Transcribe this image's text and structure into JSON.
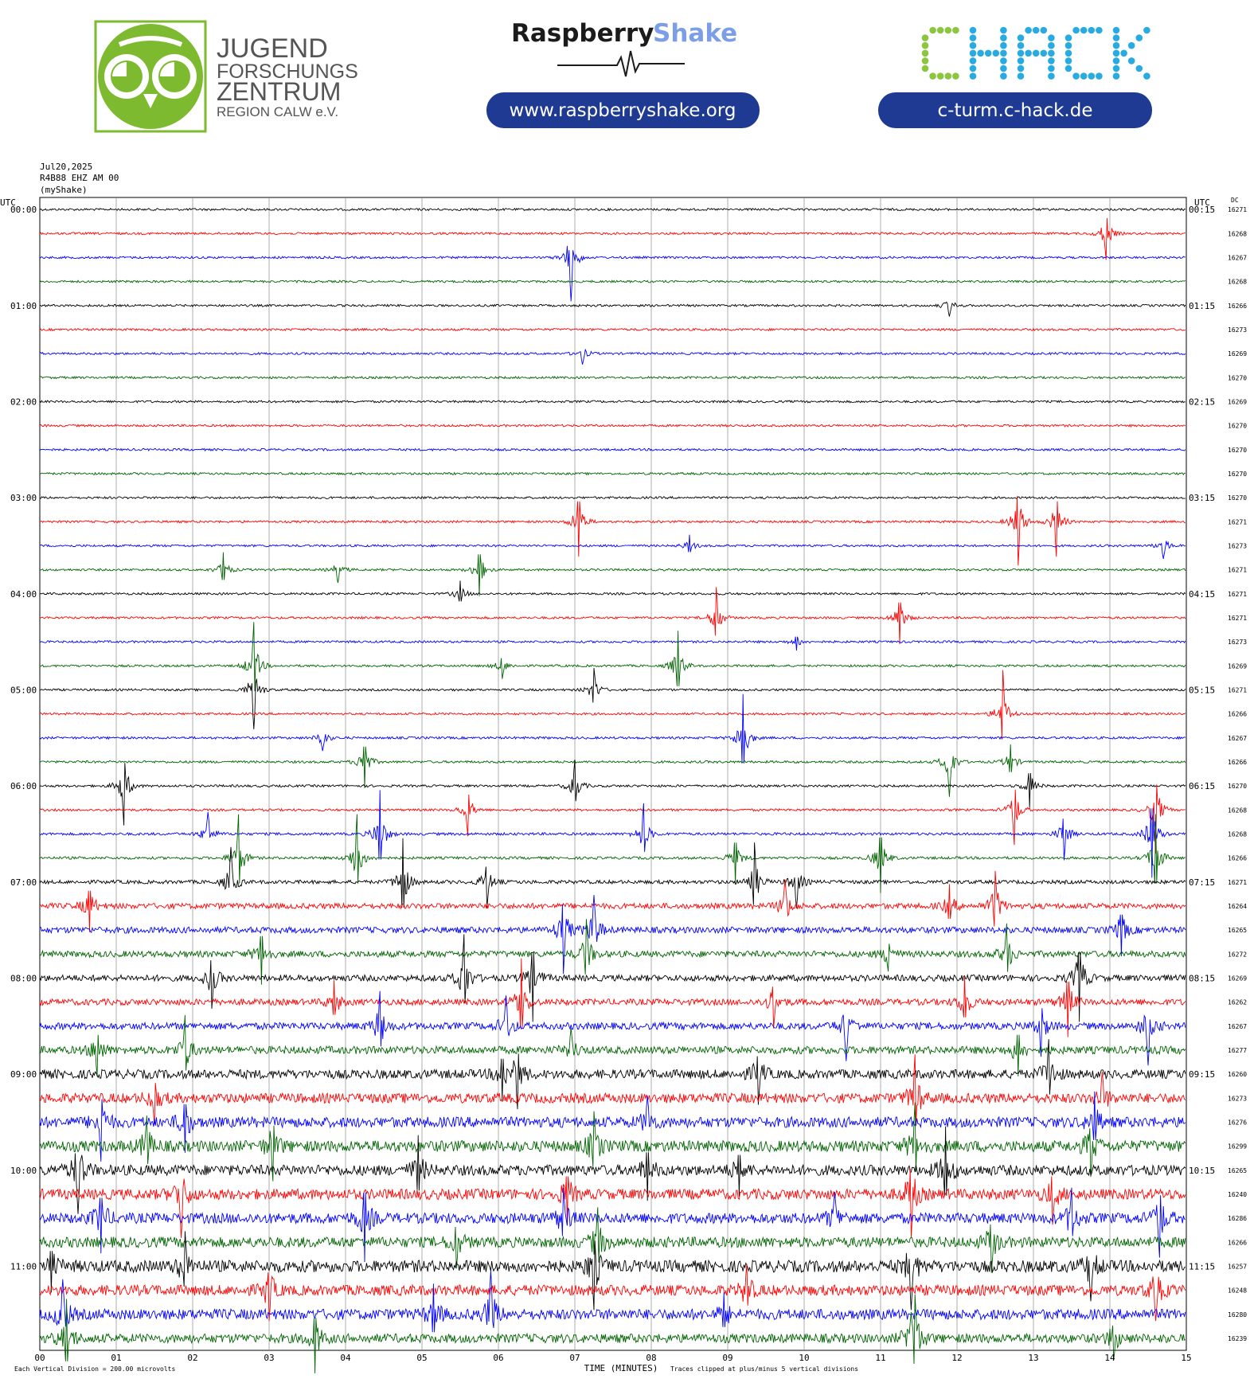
{
  "header": {
    "jfz": {
      "line1": "JUGEND",
      "line2": "FORSCHUNGS",
      "line3": "ZENTRUM",
      "line4": "REGION CALW e.V."
    },
    "rs": {
      "word1": "Raspberry",
      "word2": "Shake",
      "url": "www.raspberryshake.org"
    },
    "chack": {
      "logo_text": "CHACK",
      "url": "c-turm.c-hack.de"
    },
    "colors": {
      "jfz_green": "#7dba2f",
      "navy": "#1f3a93",
      "shake_blue": "#7b9ee6",
      "chack_green": "#8cc63f",
      "chack_blue": "#29abe2"
    }
  },
  "chart_data": {
    "type": "helicorder",
    "date": "Jul20,2025",
    "station": "R4B88 EHZ AM 00",
    "source": "(myShake)",
    "left_axis_label": "UTC",
    "right_axis_label": "UTC",
    "dc_label": "DC",
    "xlabel": "TIME (MINUTES)",
    "x_ticks": [
      "00",
      "01",
      "02",
      "03",
      "04",
      "05",
      "06",
      "07",
      "08",
      "09",
      "10",
      "11",
      "12",
      "13",
      "14",
      "15"
    ],
    "left_times": [
      "00:00",
      "01:00",
      "02:00",
      "03:00",
      "04:00",
      "05:00",
      "06:00",
      "07:00",
      "08:00",
      "09:00",
      "10:00",
      "11:00"
    ],
    "right_times": [
      "00:15",
      "01:15",
      "02:15",
      "03:15",
      "04:15",
      "05:15",
      "06:15",
      "07:15",
      "08:15",
      "09:15",
      "10:15",
      "11:15"
    ],
    "trace_colors": [
      "#000000",
      "#ff0000",
      "#0000ff",
      "#006400"
    ],
    "dc_values": [
      16271,
      16268,
      16267,
      16268,
      16266,
      16273,
      16269,
      16270,
      16269,
      16270,
      16270,
      16270,
      16270,
      16271,
      16273,
      16271,
      16271,
      16271,
      16273,
      16269,
      16271,
      16266,
      16267,
      16266,
      16270,
      16268,
      16268,
      16266,
      16271,
      16264,
      16265,
      16272,
      16269,
      16262,
      16267,
      16277,
      16260,
      16273,
      16276,
      16299,
      16265,
      16240,
      16286,
      16266,
      16257,
      16248,
      16280,
      16239
    ],
    "activity": [
      0.02,
      0.02,
      0.02,
      0.02,
      0.02,
      0.02,
      0.02,
      0.02,
      0.02,
      0.02,
      0.02,
      0.02,
      0.02,
      0.02,
      0.02,
      0.02,
      0.02,
      0.02,
      0.02,
      0.02,
      0.02,
      0.02,
      0.03,
      0.03,
      0.03,
      0.03,
      0.05,
      0.05,
      0.12,
      0.25,
      0.3,
      0.3,
      0.3,
      0.3,
      0.35,
      0.4,
      0.5,
      0.55,
      0.6,
      0.65,
      0.6,
      0.6,
      0.6,
      0.6,
      0.7,
      0.6,
      0.6,
      0.5
    ],
    "events": [
      [
        1,
        13.95,
        0.6
      ],
      [
        2,
        6.95,
        1.0
      ],
      [
        4,
        11.9,
        0.25
      ],
      [
        6,
        7.1,
        0.25
      ],
      [
        13,
        7.05,
        0.8
      ],
      [
        13,
        12.8,
        1.0
      ],
      [
        13,
        13.3,
        0.8
      ],
      [
        14,
        8.5,
        0.25
      ],
      [
        14,
        14.7,
        0.3
      ],
      [
        15,
        2.4,
        0.4
      ],
      [
        15,
        3.9,
        0.3
      ],
      [
        15,
        5.75,
        0.6
      ],
      [
        16,
        5.5,
        0.3
      ],
      [
        17,
        8.85,
        0.7
      ],
      [
        17,
        11.25,
        0.6
      ],
      [
        18,
        9.9,
        0.2
      ],
      [
        19,
        2.8,
        1.0
      ],
      [
        19,
        6.05,
        0.3
      ],
      [
        19,
        8.35,
        0.8
      ],
      [
        20,
        2.8,
        0.9
      ],
      [
        20,
        7.25,
        0.5
      ],
      [
        21,
        12.6,
        1.0
      ],
      [
        22,
        9.2,
        1.0
      ],
      [
        22,
        3.7,
        0.3
      ],
      [
        23,
        4.25,
        0.6
      ],
      [
        23,
        11.9,
        0.8
      ],
      [
        23,
        12.7,
        0.4
      ],
      [
        24,
        1.1,
        0.9
      ],
      [
        24,
        7.0,
        0.6
      ],
      [
        24,
        12.95,
        0.5
      ],
      [
        25,
        5.6,
        0.6
      ],
      [
        25,
        12.75,
        0.8
      ],
      [
        25,
        14.6,
        1.0
      ],
      [
        26,
        2.2,
        0.5
      ],
      [
        26,
        4.45,
        1.0
      ],
      [
        26,
        7.9,
        0.7
      ],
      [
        26,
        13.4,
        0.6
      ],
      [
        26,
        14.55,
        1.0
      ],
      [
        27,
        2.6,
        1.0
      ],
      [
        27,
        4.15,
        1.0
      ],
      [
        27,
        9.1,
        0.6
      ],
      [
        27,
        11.0,
        0.8
      ],
      [
        27,
        14.6,
        1.0
      ],
      [
        28,
        2.5,
        0.8
      ],
      [
        28,
        4.75,
        1.0
      ],
      [
        28,
        5.85,
        0.6
      ],
      [
        28,
        9.35,
        0.9
      ],
      [
        28,
        9.9,
        0.6
      ],
      [
        29,
        0.65,
        0.6
      ],
      [
        29,
        9.75,
        0.6
      ],
      [
        29,
        11.9,
        0.5
      ],
      [
        29,
        12.5,
        0.8
      ],
      [
        30,
        6.85,
        1.0
      ],
      [
        30,
        7.25,
        0.8
      ],
      [
        30,
        14.15,
        0.6
      ],
      [
        31,
        2.9,
        0.7
      ],
      [
        31,
        7.15,
        0.8
      ],
      [
        31,
        11.1,
        0.4
      ],
      [
        31,
        12.65,
        0.7
      ],
      [
        32,
        2.25,
        0.7
      ],
      [
        32,
        5.55,
        1.0
      ],
      [
        32,
        6.45,
        1.0
      ],
      [
        32,
        13.6,
        1.0
      ],
      [
        33,
        3.85,
        0.5
      ],
      [
        33,
        6.3,
        1.0
      ],
      [
        33,
        9.6,
        0.6
      ],
      [
        33,
        12.1,
        0.6
      ],
      [
        33,
        13.45,
        0.8
      ],
      [
        34,
        4.45,
        0.8
      ],
      [
        34,
        6.1,
        0.7
      ],
      [
        34,
        10.55,
        0.8
      ],
      [
        34,
        13.1,
        0.7
      ],
      [
        34,
        14.5,
        0.9
      ],
      [
        35,
        0.75,
        0.6
      ],
      [
        35,
        1.9,
        0.8
      ],
      [
        35,
        6.95,
        0.5
      ],
      [
        35,
        12.8,
        0.6
      ],
      [
        36,
        6.25,
        0.8
      ],
      [
        36,
        6.05,
        0.6
      ],
      [
        36,
        9.4,
        0.7
      ],
      [
        36,
        13.2,
        0.8
      ],
      [
        37,
        1.5,
        0.6
      ],
      [
        37,
        11.45,
        1.0
      ],
      [
        37,
        13.9,
        0.6
      ],
      [
        38,
        0.8,
        0.9
      ],
      [
        38,
        1.9,
        0.7
      ],
      [
        38,
        7.95,
        0.6
      ],
      [
        38,
        13.8,
        0.7
      ],
      [
        39,
        1.4,
        0.7
      ],
      [
        39,
        3.05,
        0.8
      ],
      [
        39,
        7.25,
        0.8
      ],
      [
        39,
        11.45,
        1.0
      ],
      [
        39,
        13.75,
        0.7
      ],
      [
        40,
        0.5,
        1.0
      ],
      [
        40,
        4.95,
        0.8
      ],
      [
        40,
        7.95,
        0.7
      ],
      [
        40,
        9.15,
        0.6
      ],
      [
        40,
        11.85,
        1.0
      ],
      [
        41,
        1.85,
        1.0
      ],
      [
        41,
        6.9,
        0.7
      ],
      [
        41,
        11.4,
        1.0
      ],
      [
        41,
        13.25,
        0.7
      ],
      [
        42,
        0.8,
        0.8
      ],
      [
        42,
        4.25,
        1.0
      ],
      [
        42,
        6.85,
        0.7
      ],
      [
        42,
        10.4,
        0.6
      ],
      [
        42,
        13.5,
        0.7
      ],
      [
        42,
        14.65,
        0.9
      ],
      [
        43,
        5.45,
        0.6
      ],
      [
        43,
        7.3,
        0.8
      ],
      [
        43,
        12.45,
        0.7
      ],
      [
        44,
        0.15,
        0.6
      ],
      [
        44,
        1.9,
        0.8
      ],
      [
        44,
        7.25,
        1.0
      ],
      [
        44,
        11.4,
        1.0
      ],
      [
        44,
        13.75,
        0.8
      ],
      [
        45,
        3.0,
        0.7
      ],
      [
        45,
        9.25,
        0.6
      ],
      [
        45,
        14.6,
        0.7
      ],
      [
        46,
        0.3,
        0.8
      ],
      [
        46,
        5.15,
        0.7
      ],
      [
        46,
        5.9,
        1.0
      ],
      [
        46,
        8.95,
        0.5
      ],
      [
        47,
        0.35,
        0.9
      ],
      [
        47,
        3.6,
        0.8
      ],
      [
        47,
        11.45,
        1.0
      ],
      [
        47,
        11.4,
        0.6
      ],
      [
        47,
        14.05,
        0.5
      ]
    ],
    "footer": {
      "left": "Each Vertical Division =  200.00 microvolts",
      "right": "Traces clipped at plus/minus 5 vertical divisions"
    }
  }
}
